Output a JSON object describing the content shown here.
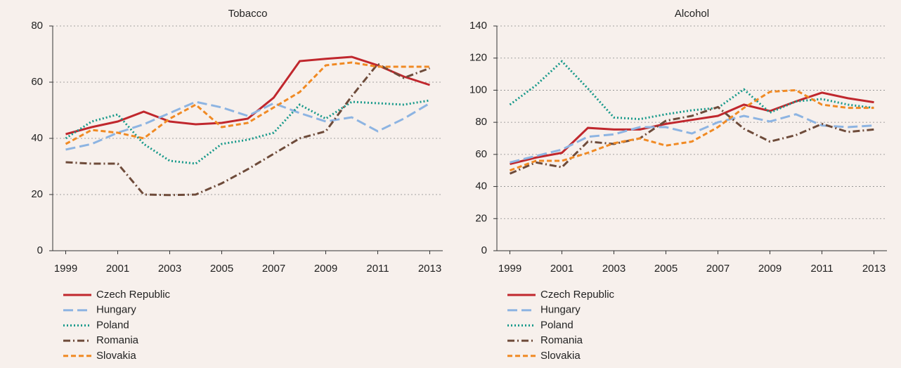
{
  "chart_data": [
    {
      "type": "line",
      "title": "Tobacco",
      "x": [
        1999,
        2000,
        2001,
        2002,
        2003,
        2004,
        2005,
        2006,
        2007,
        2008,
        2009,
        2010,
        2011,
        2012,
        2013
      ],
      "xlim": [
        1998.5,
        2013.5
      ],
      "xticks": [
        1999,
        2001,
        2003,
        2005,
        2007,
        2009,
        2011,
        2013
      ],
      "ylim": [
        0,
        80
      ],
      "yticks": [
        0,
        20,
        40,
        60,
        80
      ],
      "grid": true,
      "legend": "bottom",
      "series": [
        {
          "name": "Czech Republic",
          "color": "#c0272d",
          "dash": "solid",
          "values": [
            41.5,
            44,
            46,
            49.5,
            46,
            45,
            45.5,
            47,
            54.5,
            67.5,
            68.3,
            69,
            66,
            62,
            59
          ]
        },
        {
          "name": "Hungary",
          "color": "#8db4e2",
          "dash": "long",
          "values": [
            36,
            38,
            42,
            45,
            49,
            53,
            51,
            48,
            52.5,
            49,
            46,
            47.5,
            42.5,
            47,
            52.5
          ]
        },
        {
          "name": "Poland",
          "color": "#17998a",
          "dash": "dotted",
          "values": [
            40,
            46,
            48.5,
            38,
            32,
            31,
            38,
            39.5,
            42,
            52,
            47,
            53,
            52.5,
            52,
            53.5
          ]
        },
        {
          "name": "Romania",
          "color": "#6e4b3a",
          "dash": "dashdot",
          "values": [
            31.5,
            31,
            31,
            20,
            19.8,
            20,
            24,
            29,
            34.5,
            40,
            42.5,
            55,
            66.5,
            61.5,
            65
          ]
        },
        {
          "name": "Slovakia",
          "color": "#f08a24",
          "dash": "dashed",
          "values": [
            38,
            43,
            42,
            40,
            47,
            52,
            44,
            45.5,
            51,
            56.5,
            66,
            67,
            65.5,
            65.5,
            65.5
          ]
        }
      ]
    },
    {
      "type": "line",
      "title": "Alcohol",
      "x": [
        1999,
        2000,
        2001,
        2002,
        2003,
        2004,
        2005,
        2006,
        2007,
        2008,
        2009,
        2010,
        2011,
        2012,
        2013
      ],
      "xlim": [
        1998.5,
        2013.5
      ],
      "xticks": [
        1999,
        2001,
        2003,
        2005,
        2007,
        2009,
        2011,
        2013
      ],
      "ylim": [
        0,
        140
      ],
      "yticks": [
        0,
        20,
        40,
        60,
        80,
        100,
        120,
        140
      ],
      "grid": true,
      "legend": "bottom",
      "series": [
        {
          "name": "Czech Republic",
          "color": "#c0272d",
          "dash": "solid",
          "values": [
            54,
            58,
            61,
            76.5,
            75.5,
            75.5,
            79,
            81.5,
            84,
            91,
            87,
            93,
            98.5,
            95,
            92.5
          ]
        },
        {
          "name": "Hungary",
          "color": "#8db4e2",
          "dash": "long",
          "values": [
            55,
            59,
            63,
            71,
            72.5,
            77,
            77,
            73,
            80,
            84,
            80.5,
            85,
            78,
            77,
            78
          ]
        },
        {
          "name": "Poland",
          "color": "#17998a",
          "dash": "dotted",
          "values": [
            91,
            103,
            118,
            101,
            83,
            82,
            85,
            87.5,
            89,
            100.5,
            86,
            93,
            94.5,
            91,
            89
          ]
        },
        {
          "name": "Romania",
          "color": "#6e4b3a",
          "dash": "dashdot",
          "values": [
            48,
            55,
            52,
            68,
            66.5,
            70,
            81,
            84,
            89.5,
            76,
            68,
            72,
            79,
            74,
            75.5
          ]
        },
        {
          "name": "Slovakia",
          "color": "#f08a24",
          "dash": "dashed",
          "values": [
            50,
            56,
            56,
            61,
            67,
            70,
            65.5,
            68,
            77,
            89,
            99,
            100,
            91,
            89,
            89
          ]
        }
      ]
    }
  ]
}
